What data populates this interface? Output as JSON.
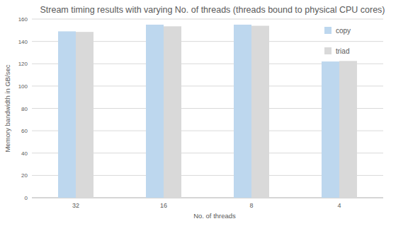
{
  "chart_data": {
    "type": "bar",
    "title": "Stream timing results with varying No. of threads (threads bound to physical CPU cores)",
    "x_label": "No. of threads",
    "y_label": "Memory bandwidth in GB/sec",
    "categories": [
      "32",
      "16",
      "8",
      "4"
    ],
    "series": [
      {
        "name": "copy",
        "color": "#bdd7ee",
        "values": [
          149,
          155,
          155,
          122
        ]
      },
      {
        "name": "triad",
        "color": "#d9d9d9",
        "values": [
          148.5,
          153.5,
          154,
          122.5
        ]
      }
    ],
    "ylim": [
      0,
      160
    ],
    "yticks": [
      0,
      20,
      40,
      60,
      80,
      100,
      120,
      140,
      160
    ],
    "grid": true,
    "legend": "top-right"
  }
}
